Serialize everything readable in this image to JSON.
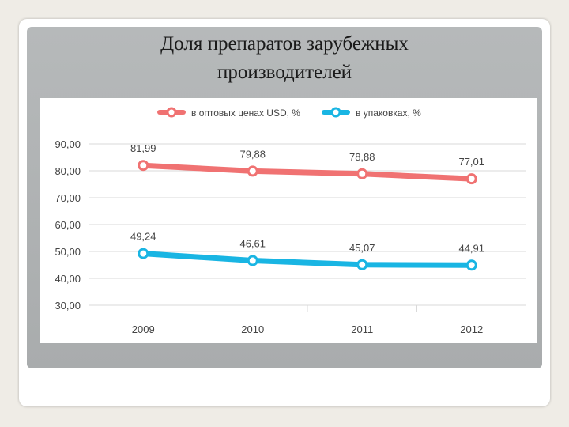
{
  "slide": {
    "title_line1": "Доля препаратов зарубежных",
    "title_line2": "производителей"
  },
  "chart_data": {
    "type": "line",
    "categories": [
      "2009",
      "2010",
      "2011",
      "2012"
    ],
    "series": [
      {
        "name": "в оптовых ценах USD, %",
        "color": "#f07272",
        "values": [
          81.99,
          79.88,
          78.88,
          77.01
        ],
        "labels": [
          "81,99",
          "79,88",
          "78,88",
          "77,01"
        ]
      },
      {
        "name": "в упаковках, %",
        "color": "#19b5e3",
        "values": [
          49.24,
          46.61,
          45.07,
          44.91
        ],
        "labels": [
          "49,24",
          "46,61",
          "45,07",
          "44,91"
        ]
      }
    ],
    "ylim": [
      30,
      90
    ],
    "yticks": [
      90,
      80,
      70,
      60,
      50,
      40,
      30
    ],
    "ytick_labels": [
      "90,00",
      "80,00",
      "70,00",
      "60,00",
      "50,00",
      "40,00",
      "30,00"
    ],
    "grid": true,
    "legend_position": "top"
  }
}
